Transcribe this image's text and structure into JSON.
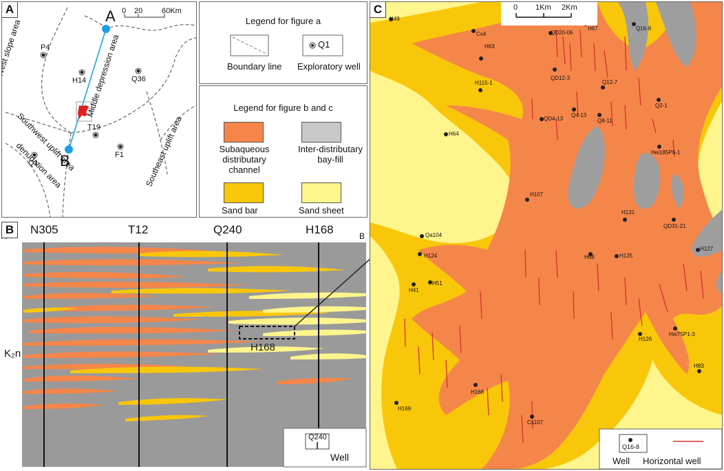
{
  "panel_a": {
    "label": "A",
    "scale": {
      "t0": "0",
      "t1": "20",
      "t2": "60Km"
    },
    "points": {
      "a": "A",
      "b": "B"
    },
    "areas": {
      "west_slope": "West slope area",
      "middle_depression": "Middle depression area",
      "southwest_uplift": "Southwest uplift area",
      "denudation": "denudation area",
      "southeast_uplift": "Southeast uplift area"
    },
    "wells": [
      "P4",
      "H14",
      "Q36",
      "T19",
      "Q1",
      "F1"
    ]
  },
  "legend_a": {
    "title": "Legend for figure a",
    "boundary": "Boundary line",
    "well": "Exploratory well",
    "well_symbol": "Q1"
  },
  "legend_bc": {
    "title": "Legend for figure b and c",
    "items": [
      {
        "label": "Subaqueous distributary channel",
        "color": "#F5864A"
      },
      {
        "label": "Inter-distributary bay-fill",
        "color": "#C8C8C8"
      },
      {
        "label": "Sand bar",
        "color": "#F9C70A"
      },
      {
        "label": "Sand sheet",
        "color": "#FFF58C"
      }
    ]
  },
  "panel_b": {
    "label": "B",
    "end_a": "A",
    "end_b": "B",
    "wells": [
      "N305",
      "T12",
      "Q240",
      "H168"
    ],
    "formation": "K₂n",
    "box_label": "H168",
    "legend_symbol": "Q240",
    "legend_label": "Well"
  },
  "panel_c": {
    "label": "C",
    "scale": {
      "t0": "0",
      "t1": "1Km",
      "t2": "2Km"
    },
    "wells": [
      "H49",
      "Cs4",
      "QD20-06",
      "H67",
      "Q16-8",
      "H63",
      "QD12-3",
      "H115-1",
      "Q12-7",
      "Q2-1",
      "QD4-13",
      "Q4-13",
      "Q8-11",
      "H64",
      "Hei185P6-1",
      "H107",
      "H131",
      "QD31-21",
      "Qa104",
      "H124",
      "H68",
      "H125",
      "H127",
      "H41",
      "H51",
      "H126",
      "Hei75P1-3",
      "H83",
      "H168",
      "H169",
      "Cs107"
    ],
    "legend_symbol": "Q16-8",
    "legend_well": "Well",
    "legend_hwell": "Horizontal well"
  },
  "colors": {
    "channel": "#F5864A",
    "bay": "#9E9E9E",
    "sandbar": "#F9C70A",
    "sheet": "#FFF58C",
    "hwell": "#D2322D",
    "section_line": "#1AA8D8",
    "marker": "#1E9FE0"
  }
}
